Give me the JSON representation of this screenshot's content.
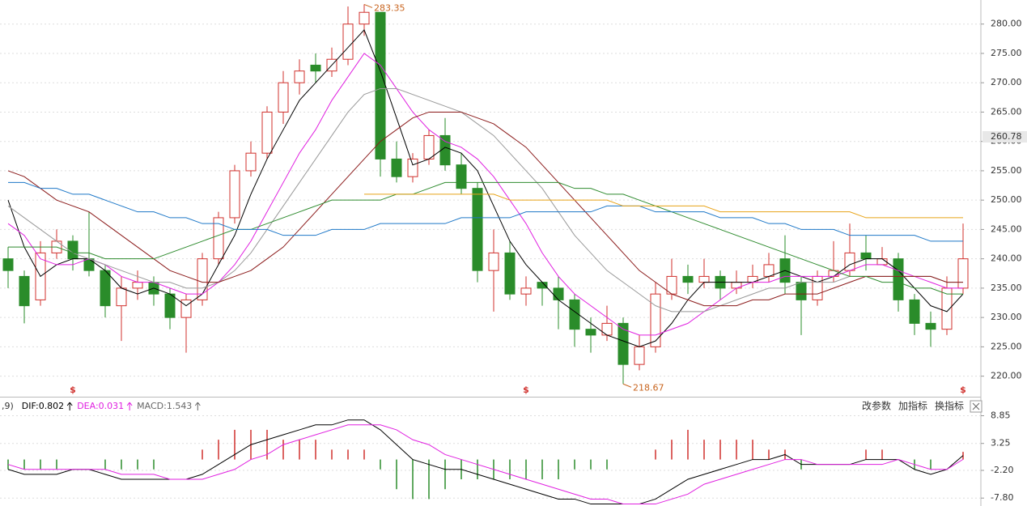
{
  "chart_data": [
    {
      "type": "candlestick",
      "ylim": [
        216.5,
        284.1
      ],
      "yticks": [
        {
          "value": 220,
          "label": "220.00"
        },
        {
          "value": 225,
          "label": "225.00"
        },
        {
          "value": 230,
          "label": "230.00"
        },
        {
          "value": 235,
          "label": "235.00"
        },
        {
          "value": 240,
          "label": "240.00"
        },
        {
          "value": 245,
          "label": "245.00"
        },
        {
          "value": 250,
          "label": "250.00"
        },
        {
          "value": 255,
          "label": "255.00"
        },
        {
          "value": 260,
          "label": "260.00"
        },
        {
          "value": 265,
          "label": "265.00"
        },
        {
          "value": 270,
          "label": "270.00"
        },
        {
          "value": 275,
          "label": "275.00"
        },
        {
          "value": 280,
          "label": "280.00"
        }
      ],
      "grid": true,
      "up_color": "#d0312d",
      "down_color": "#2a8c2a",
      "open": [
        240,
        237,
        233,
        241,
        243,
        240,
        238,
        232,
        235,
        236,
        234,
        230,
        233,
        240,
        247,
        255,
        258,
        265,
        270,
        273,
        272,
        274,
        280,
        282,
        257,
        254,
        257,
        261,
        256,
        252,
        238,
        241,
        234,
        236,
        235,
        233,
        228,
        227,
        229,
        222,
        225,
        234,
        237,
        236,
        237,
        235,
        236,
        237,
        240,
        236,
        233,
        237,
        238,
        241,
        239,
        240,
        233,
        229,
        228,
        235
      ],
      "high": [
        242,
        238,
        243,
        245,
        244,
        248,
        239,
        237,
        238,
        237,
        235,
        234,
        241,
        248,
        256,
        260,
        266,
        272,
        274,
        275,
        276,
        283,
        283.35,
        282,
        260,
        258,
        262,
        264,
        258,
        253,
        245,
        243,
        237,
        236,
        237,
        234,
        230,
        232,
        230,
        227,
        236,
        240,
        239,
        240,
        238,
        238,
        239,
        241,
        244,
        237,
        238,
        243,
        246,
        244,
        242,
        241,
        234,
        231,
        237,
        246
      ],
      "low": [
        235,
        229,
        232,
        240,
        238,
        237,
        230,
        226,
        233,
        232,
        228,
        224,
        232,
        239,
        246,
        254,
        257,
        263,
        268,
        270,
        271,
        273,
        278,
        254,
        253,
        253,
        256,
        255,
        251,
        236,
        231,
        233,
        232,
        232,
        228,
        225,
        224,
        226,
        218.67,
        221,
        224,
        233,
        234,
        235,
        233,
        234,
        235,
        236,
        234,
        227,
        232,
        236,
        237,
        238,
        239,
        231,
        227,
        225,
        227,
        234
      ],
      "close": [
        238,
        232,
        241,
        243,
        240,
        238,
        232,
        235,
        236,
        234,
        230,
        233,
        240,
        247,
        255,
        258,
        265,
        270,
        272,
        272,
        274,
        280,
        282,
        257,
        254,
        257,
        261,
        256,
        252,
        238,
        241,
        234,
        235,
        235,
        233,
        228,
        227,
        229,
        222,
        225,
        234,
        237,
        236,
        237,
        235,
        236,
        237,
        239,
        236,
        233,
        237,
        238,
        241,
        240,
        240,
        233,
        229,
        228,
        235,
        240
      ],
      "lines": [
        {
          "color": "#000000",
          "values": [
            250,
            242,
            237,
            239,
            240,
            240,
            238,
            235,
            234,
            235,
            234,
            232,
            234,
            239,
            244,
            251,
            257,
            262,
            267,
            270,
            273,
            276,
            279,
            272,
            264,
            256,
            257,
            259,
            258,
            255,
            249,
            243,
            239,
            236,
            233,
            231,
            229,
            227,
            226,
            225,
            226,
            229,
            233,
            236,
            236,
            236,
            236,
            237,
            238,
            237,
            236,
            237,
            239,
            240,
            240,
            238,
            235,
            232,
            231,
            234
          ]
        },
        {
          "color": "#e020e0",
          "values": [
            246,
            244,
            240,
            239,
            239,
            240,
            239,
            237,
            236,
            236,
            235,
            234,
            234,
            236,
            239,
            243,
            248,
            253,
            258,
            262,
            267,
            271,
            275,
            273,
            269,
            265,
            262,
            260,
            259,
            257,
            254,
            250,
            246,
            241,
            237,
            234,
            232,
            230,
            228,
            227,
            227,
            228,
            229,
            231,
            233,
            235,
            236,
            236,
            237,
            237,
            237,
            237,
            238,
            239,
            239,
            238,
            237,
            236,
            235,
            235
          ]
        },
        {
          "color": "#999999",
          "values": [
            249,
            247,
            245,
            243,
            241,
            240,
            239,
            238,
            237,
            236,
            236,
            235,
            235,
            236,
            238,
            241,
            245,
            249,
            253,
            257,
            261,
            265,
            268,
            269,
            269,
            268,
            267,
            266,
            265,
            263,
            261,
            258,
            255,
            252,
            248,
            244,
            241,
            238,
            236,
            234,
            232,
            231,
            231,
            231,
            232,
            233,
            234,
            235,
            235,
            236,
            236,
            236,
            237,
            237,
            237,
            237,
            237,
            237,
            236,
            236
          ]
        },
        {
          "color": "#8b1a1a",
          "values": [
            255,
            254,
            252,
            250,
            249,
            248,
            246,
            244,
            242,
            240,
            238,
            237,
            236,
            236,
            237,
            238,
            240,
            242,
            245,
            248,
            251,
            254,
            257,
            260,
            262,
            264,
            265,
            265,
            265,
            264,
            263,
            261,
            259,
            256,
            253,
            250,
            247,
            244,
            241,
            238,
            236,
            234,
            233,
            232,
            232,
            232,
            233,
            233,
            234,
            234,
            234,
            235,
            236,
            237,
            237,
            237,
            237,
            237,
            236,
            236
          ]
        },
        {
          "color": "#2e8b2e",
          "values": [
            242,
            242,
            242,
            242,
            241,
            241,
            240,
            240,
            240,
            240,
            241,
            242,
            243,
            244,
            245,
            245,
            246,
            247,
            248,
            249,
            250,
            250,
            250,
            250,
            251,
            251,
            252,
            253,
            253,
            253,
            253,
            253,
            253,
            253,
            253,
            252,
            252,
            251,
            251,
            250,
            249,
            248,
            247,
            246,
            245,
            244,
            243,
            242,
            241,
            240,
            239,
            238,
            237,
            237,
            236,
            236,
            235,
            235,
            234,
            234
          ]
        },
        {
          "color": "#1e78c8",
          "values": [
            253,
            253,
            252,
            252,
            251,
            251,
            250,
            249,
            248,
            248,
            247,
            247,
            246,
            246,
            245,
            245,
            245,
            244,
            244,
            244,
            245,
            245,
            245,
            246,
            246,
            246,
            246,
            246,
            247,
            247,
            247,
            247,
            248,
            248,
            248,
            248,
            248,
            249,
            249,
            249,
            248,
            248,
            248,
            248,
            247,
            247,
            247,
            246,
            246,
            245,
            245,
            245,
            244,
            244,
            244,
            244,
            244,
            243,
            243,
            243
          ]
        },
        {
          "color": "#e8a317",
          "values": [
            null,
            null,
            null,
            null,
            null,
            null,
            null,
            null,
            null,
            null,
            null,
            null,
            null,
            null,
            null,
            null,
            null,
            null,
            null,
            null,
            null,
            null,
            251,
            251,
            251,
            251,
            251,
            251,
            251,
            251,
            251,
            250,
            250,
            250,
            250,
            250,
            250,
            250,
            249,
            249,
            249,
            249,
            249,
            249,
            248,
            248,
            248,
            248,
            248,
            248,
            248,
            248,
            248,
            247,
            247,
            247,
            247,
            247,
            247,
            247
          ]
        }
      ],
      "high_mark": 283.35,
      "low_mark": 218.67,
      "price_marker": 260.78,
      "signals": [
        {
          "index": 4,
          "label": "$"
        },
        {
          "index": 32,
          "label": "$"
        },
        {
          "index": 59,
          "label": "$"
        }
      ]
    },
    {
      "type": "macd",
      "ylim": [
        -9.4,
        12.37
      ],
      "yticks": [
        8.85,
        3.25,
        {
          "value": -2.2,
          "label": "-2.20"
        },
        {
          "value": -7.8,
          "label": "-7.80"
        }
      ],
      "header": [
        {
          "text": ",9)",
          "color": "#333333"
        },
        {
          "text": "DIF:0.802",
          "color": "#000000"
        },
        {
          "text": "DEA:0.031",
          "color": "#e020e0"
        },
        {
          "text": "MACD:1.543",
          "color": "#666666"
        }
      ],
      "controls": [
        "改参数",
        "加指标",
        "换指标"
      ],
      "up_color": "#d0312d",
      "down_color": "#2a8c2a",
      "dif": {
        "color": "#000000",
        "values": [
          -2,
          -3,
          -3,
          -3,
          -2,
          -2,
          -3,
          -4,
          -4,
          -4,
          -4,
          -4,
          -3,
          -1,
          1,
          3,
          4,
          5,
          6,
          7,
          7,
          8,
          8,
          6,
          3,
          0,
          -1,
          -2,
          -2,
          -3,
          -4,
          -5,
          -6,
          -7,
          -8,
          -8,
          -9,
          -9,
          -9,
          -9,
          -8,
          -6,
          -4,
          -3,
          -2,
          -1,
          0,
          0,
          1,
          -1,
          -1,
          -1,
          -1,
          0,
          0,
          0,
          -2,
          -3,
          -2,
          0.802
        ]
      },
      "dea": {
        "color": "#e020e0",
        "values": [
          -1,
          -2,
          -2,
          -2,
          -2,
          -2,
          -2,
          -3,
          -3,
          -3,
          -4,
          -4,
          -4,
          -3,
          -2,
          0,
          1,
          3,
          4,
          5,
          6,
          7,
          7,
          7,
          6,
          4,
          3,
          1,
          0,
          -1,
          -2,
          -3,
          -4,
          -5,
          -6,
          -7,
          -8,
          -8,
          -9,
          -9,
          -9,
          -8,
          -7,
          -5,
          -4,
          -3,
          -2,
          -1,
          0,
          0,
          -1,
          -1,
          -1,
          -1,
          -1,
          0,
          -1,
          -2,
          -2,
          0.031
        ]
      },
      "macd": [
        -2,
        -2,
        -2,
        -2,
        0,
        0,
        -2,
        -2,
        -2,
        -2,
        0,
        0,
        2,
        4,
        6,
        6,
        6,
        4,
        4,
        4,
        2,
        2,
        2,
        -2,
        -6,
        -8,
        -8,
        -6,
        -4,
        -4,
        -4,
        -4,
        -4,
        -4,
        -4,
        -2,
        -2,
        -2,
        0,
        0,
        2,
        4,
        6,
        4,
        4,
        4,
        4,
        2,
        2,
        -2,
        0,
        0,
        0,
        2,
        2,
        0,
        -2,
        -2,
        0,
        1.543
      ]
    }
  ]
}
